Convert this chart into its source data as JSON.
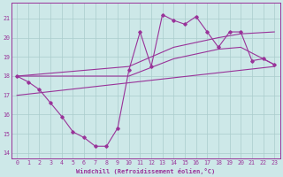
{
  "xlabel": "Windchill (Refroidissement éolien,°C)",
  "xlim": [
    -0.5,
    23.5
  ],
  "ylim": [
    13.7,
    21.8
  ],
  "yticks": [
    14,
    15,
    16,
    17,
    18,
    19,
    20,
    21
  ],
  "xticks": [
    0,
    1,
    2,
    3,
    4,
    5,
    6,
    7,
    8,
    9,
    10,
    11,
    12,
    13,
    14,
    15,
    16,
    17,
    18,
    19,
    20,
    21,
    22,
    23
  ],
  "bg_color": "#cde8e8",
  "grid_color": "#aacccc",
  "line_color": "#993399",
  "line1_x": [
    0,
    1,
    2,
    3,
    4,
    5,
    6,
    7,
    8,
    9,
    10,
    11,
    12,
    13,
    14,
    15,
    16,
    17,
    18,
    19,
    20,
    21,
    22,
    23
  ],
  "line1_y": [
    18.0,
    17.7,
    17.3,
    16.6,
    15.9,
    15.1,
    14.8,
    14.35,
    14.35,
    15.3,
    18.3,
    20.3,
    18.5,
    21.2,
    20.9,
    20.7,
    21.1,
    20.3,
    19.5,
    20.3,
    20.3,
    18.8,
    18.9,
    18.6
  ],
  "line2_x": [
    0,
    10,
    14,
    18,
    20,
    23
  ],
  "line2_y": [
    18.0,
    18.5,
    19.5,
    20.0,
    20.2,
    20.3
  ],
  "line3_x": [
    0,
    10,
    14,
    18,
    20,
    23
  ],
  "line3_y": [
    18.0,
    18.0,
    18.9,
    19.4,
    19.5,
    18.6
  ],
  "line4_x": [
    0,
    23
  ],
  "line4_y": [
    17.0,
    18.5
  ]
}
